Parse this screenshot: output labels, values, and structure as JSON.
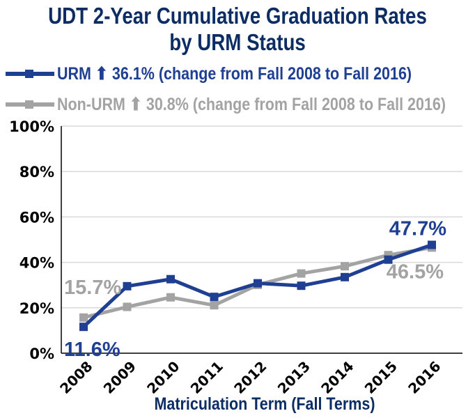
{
  "chart_data": {
    "type": "line",
    "title": "UDT 2-Year Cumulative Graduation Rates by URM Status",
    "xlabel": "Matriculation Term (Fall Terms)",
    "ylabel": "",
    "x": [
      "2008",
      "2009",
      "2010",
      "2011",
      "2012",
      "2013",
      "2014",
      "2015",
      "2016"
    ],
    "ylim": [
      0,
      100
    ],
    "yticks": [
      "0%",
      "20%",
      "40%",
      "60%",
      "80%",
      "100%"
    ],
    "grid": true,
    "legend_position": "top",
    "series": [
      {
        "name": "URM",
        "legend_text": "URM ⬆ 36.1% (change from Fall 2008 to Fall 2016)",
        "color": "#1f3f93",
        "values": [
          11.6,
          29.5,
          32.6,
          24.8,
          30.8,
          29.7,
          33.5,
          41.2,
          47.7
        ]
      },
      {
        "name": "Non-URM",
        "legend_text": "Non-URM ⬆ 30.8% (change from Fall 2008 to Fall 2016)",
        "color": "#a3a3a3",
        "values": [
          15.7,
          20.4,
          24.6,
          21.1,
          30.1,
          35.1,
          38.3,
          43.2,
          46.5
        ]
      }
    ],
    "annotations": [
      {
        "text": "15.7%",
        "series": "Non-URM",
        "x": "2008"
      },
      {
        "text": "11.6%",
        "series": "URM",
        "x": "2008"
      },
      {
        "text": "47.7%",
        "series": "URM",
        "x": "2016"
      },
      {
        "text": "46.5%",
        "series": "Non-URM",
        "x": "2016"
      }
    ]
  }
}
